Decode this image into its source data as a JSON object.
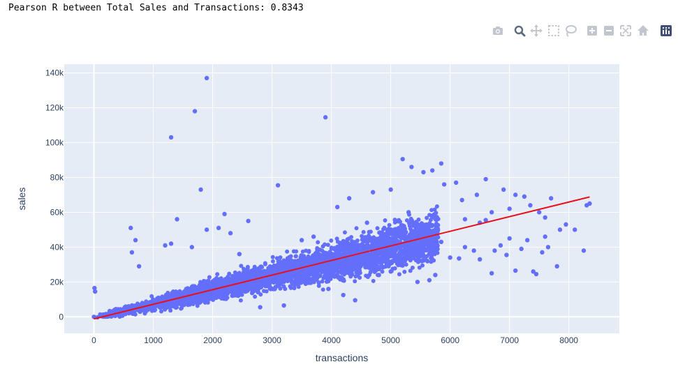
{
  "output": {
    "text": "Pearson R between Total Sales and Transactions: 0.8343"
  },
  "modebar": [
    {
      "name": "camera-icon",
      "label": "Download plot as a png"
    },
    {
      "name": "zoom-icon",
      "label": "Zoom"
    },
    {
      "name": "pan-icon",
      "label": "Pan"
    },
    {
      "name": "box-select-icon",
      "label": "Box Select"
    },
    {
      "name": "lasso-select-icon",
      "label": "Lasso Select"
    },
    {
      "name": "zoom-in-icon",
      "label": "Zoom in"
    },
    {
      "name": "zoom-out-icon",
      "label": "Zoom out"
    },
    {
      "name": "autoscale-icon",
      "label": "Autoscale"
    },
    {
      "name": "reset-axes-icon",
      "label": "Reset axes"
    },
    {
      "name": "plotly-logo-icon",
      "label": "Produced with Plotly"
    }
  ],
  "chart_data": {
    "type": "scatter",
    "title": "",
    "xlabel": "transactions",
    "ylabel": "sales",
    "xlim": [
      -500,
      8850
    ],
    "ylim": [
      -9500,
      145000
    ],
    "x_ticks": [
      0,
      1000,
      2000,
      3000,
      4000,
      5000,
      6000,
      7000,
      8000
    ],
    "x_tick_labels": [
      "0",
      "1000",
      "2000",
      "3000",
      "4000",
      "5000",
      "6000",
      "7000",
      "8000"
    ],
    "y_ticks": [
      0,
      20000,
      40000,
      60000,
      80000,
      100000,
      120000,
      140000
    ],
    "y_tick_labels": [
      "0",
      "20k",
      "40k",
      "60k",
      "80k",
      "100k",
      "120k",
      "140k"
    ],
    "grid": true,
    "colors": {
      "points": "#636efa",
      "trendline": "#e8101a",
      "plot_bg": "#e5ecf6",
      "grid": "#ffffff"
    },
    "trendline": {
      "x": [
        0,
        8350
      ],
      "y": [
        -1200,
        68800
      ]
    },
    "series": [
      {
        "points": [
          [
            0,
            0
          ],
          [
            10,
            16500
          ],
          [
            20,
            14500
          ],
          [
            60,
            -300
          ],
          [
            150,
            300
          ],
          [
            1300,
            103000
          ],
          [
            1700,
            118000
          ],
          [
            1900,
            137000
          ],
          [
            3900,
            114500
          ],
          [
            1800,
            73000
          ],
          [
            3100,
            75500
          ],
          [
            1400,
            56000
          ],
          [
            2200,
            59000
          ],
          [
            2600,
            55000
          ],
          [
            620,
            51000
          ],
          [
            700,
            44000
          ],
          [
            640,
            37000
          ],
          [
            760,
            29000
          ],
          [
            1200,
            41000
          ],
          [
            1300,
            42000
          ],
          [
            1900,
            50000
          ],
          [
            2100,
            51000
          ],
          [
            2300,
            48000
          ],
          [
            1650,
            40000
          ],
          [
            4300,
            68000
          ],
          [
            4700,
            71500
          ],
          [
            5000,
            73000
          ],
          [
            5200,
            90500
          ],
          [
            5350,
            86000
          ],
          [
            5550,
            83000
          ],
          [
            5700,
            84000
          ],
          [
            5850,
            88000
          ],
          [
            5900,
            76000
          ],
          [
            6100,
            77000
          ],
          [
            6200,
            67000
          ],
          [
            6450,
            70000
          ],
          [
            6600,
            79000
          ],
          [
            6250,
            56000
          ],
          [
            6500,
            54000
          ],
          [
            6600,
            55500
          ],
          [
            6700,
            60000
          ],
          [
            6900,
            73000
          ],
          [
            7000,
            62000
          ],
          [
            7100,
            70000
          ],
          [
            7250,
            69000
          ],
          [
            7350,
            64000
          ],
          [
            7500,
            60000
          ],
          [
            7600,
            57000
          ],
          [
            7700,
            68000
          ],
          [
            7850,
            50000
          ],
          [
            7950,
            53000
          ],
          [
            8100,
            50000
          ],
          [
            8300,
            64000
          ],
          [
            8350,
            65000
          ],
          [
            8250,
            38000
          ],
          [
            7800,
            29000
          ],
          [
            7400,
            26000
          ],
          [
            7450,
            24500
          ],
          [
            7100,
            26500
          ],
          [
            6850,
            41000
          ],
          [
            7000,
            45000
          ],
          [
            7200,
            39000
          ],
          [
            7300,
            44000
          ],
          [
            7600,
            46000
          ],
          [
            7650,
            40000
          ],
          [
            7550,
            37000
          ],
          [
            6750,
            38000
          ],
          [
            6950,
            35500
          ],
          [
            6700,
            25000
          ],
          [
            6250,
            40000
          ],
          [
            6400,
            38000
          ],
          [
            6500,
            33000
          ],
          [
            6150,
            33500
          ],
          [
            6000,
            34000
          ],
          [
            5850,
            43000
          ],
          [
            5650,
            36000
          ],
          [
            5750,
            24000
          ],
          [
            5650,
            21000
          ],
          [
            5450,
            20000
          ],
          [
            5200,
            30000
          ],
          [
            5000,
            26000
          ],
          [
            4800,
            24000
          ],
          [
            4400,
            9500
          ],
          [
            4200,
            12500
          ],
          [
            3950,
            16000
          ],
          [
            3200,
            6500
          ],
          [
            2800,
            5500
          ],
          [
            5100,
            55000
          ],
          [
            5300,
            60000
          ],
          [
            4600,
            54000
          ],
          [
            3700,
            46000
          ],
          [
            4100,
            63000
          ],
          [
            3500,
            44000
          ],
          [
            2450,
            36000
          ]
        ]
      }
    ]
  }
}
